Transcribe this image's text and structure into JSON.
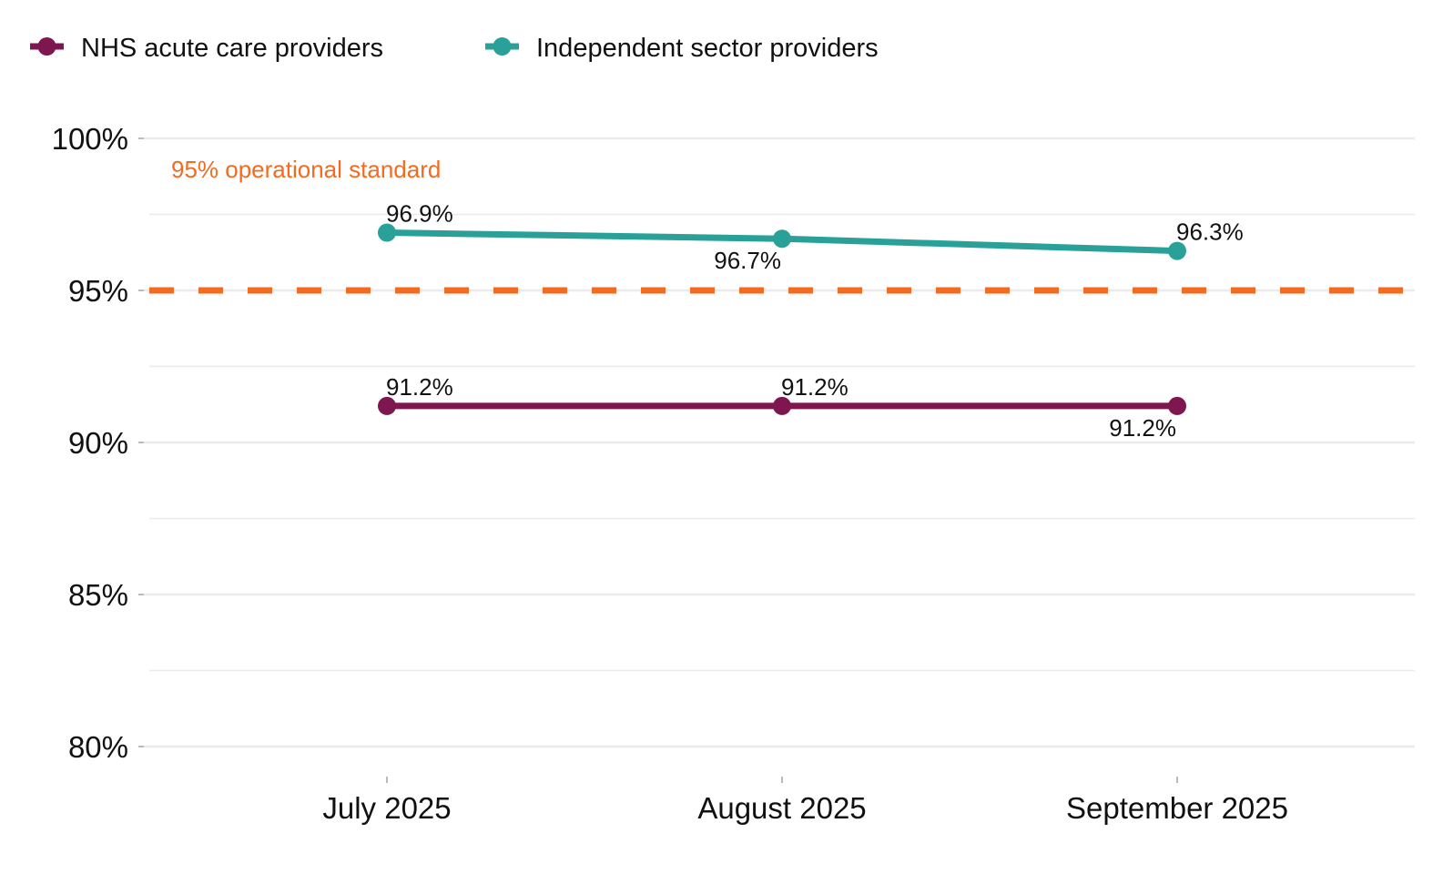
{
  "chart_data": {
    "type": "line",
    "title": "",
    "xlabel": "",
    "ylabel": "",
    "categories": [
      "July 2025",
      "August 2025",
      "September 2025"
    ],
    "ylim": [
      80,
      100
    ],
    "yticks": [
      80,
      85,
      90,
      95,
      100
    ],
    "ytick_labels": [
      "80%",
      "85%",
      "90%",
      "95%",
      "100%"
    ],
    "grid": true,
    "legend_position": "top-left",
    "series": [
      {
        "name": "NHS acute care providers",
        "color": "#7E1650",
        "values": [
          91.2,
          91.2,
          91.2
        ],
        "labels": [
          "91.2%",
          "91.2%",
          "91.2%"
        ],
        "label_positions": [
          "above",
          "above",
          "below"
        ]
      },
      {
        "name": "Independent sector providers",
        "color": "#2AA198",
        "values": [
          96.9,
          96.7,
          96.3
        ],
        "labels": [
          "96.9%",
          "96.7%",
          "96.3%"
        ],
        "label_positions": [
          "above",
          "below",
          "above"
        ]
      }
    ],
    "reference_line": {
      "value": 95,
      "label": "95% operational standard",
      "color": "#F26B21",
      "style": "dashed"
    }
  }
}
